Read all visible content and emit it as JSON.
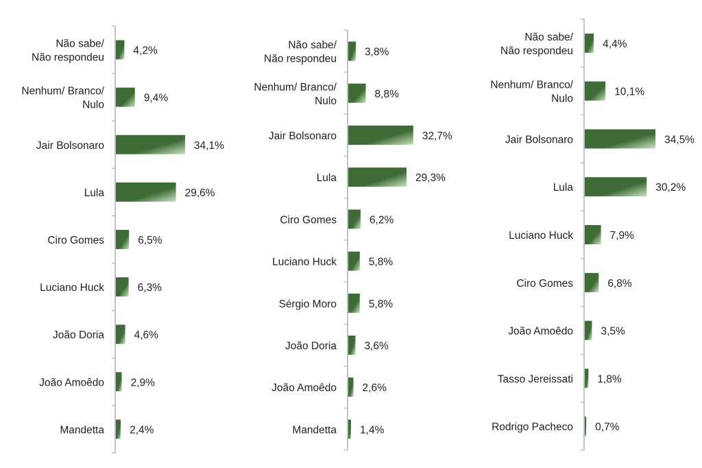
{
  "chart_data": [
    {
      "type": "bar",
      "orientation": "horizontal",
      "categories": [
        "Não sabe/\nNão respondeu",
        "Nenhum/ Branco/\nNulo",
        "Jair Bolsonaro",
        "Lula",
        "Ciro Gomes",
        "Luciano Huck",
        "João Doria",
        "João Amoêdo",
        "Mandetta"
      ],
      "values": [
        4.2,
        9.4,
        34.1,
        29.6,
        6.5,
        6.3,
        4.6,
        2.9,
        2.4
      ],
      "value_labels": [
        "4,2%",
        "9,4%",
        "34,1%",
        "29,6%",
        "6,5%",
        "6,3%",
        "4,6%",
        "2,9%",
        "2,4%"
      ],
      "xlim": [
        0,
        40
      ]
    },
    {
      "type": "bar",
      "orientation": "horizontal",
      "categories": [
        "Não sabe/\nNão respondeu",
        "Nenhum/ Branco/\nNulo",
        "Jair Bolsonaro",
        "Lula",
        "Ciro Gomes",
        "Luciano Huck",
        "Sérgio Moro",
        "João Doria",
        "João Amoêdo",
        "Mandetta"
      ],
      "values": [
        3.8,
        8.8,
        32.7,
        29.3,
        6.2,
        5.8,
        5.8,
        3.6,
        2.6,
        1.4
      ],
      "value_labels": [
        "3,8%",
        "8,8%",
        "32,7%",
        "29,3%",
        "6,2%",
        "5,8%",
        "5,8%",
        "3,6%",
        "2,6%",
        "1,4%"
      ],
      "xlim": [
        0,
        40
      ]
    },
    {
      "type": "bar",
      "orientation": "horizontal",
      "categories": [
        "Não sabe/\nNão respondeu",
        "Nenhum/ Branco/\nNulo",
        "Jair Bolsonaro",
        "Lula",
        "Luciano Huck",
        "Ciro Gomes",
        "João Amoêdo",
        "Tasso Jereissati",
        "Rodrigo Pacheco"
      ],
      "values": [
        4.4,
        10.1,
        34.5,
        30.2,
        7.9,
        6.8,
        3.5,
        1.8,
        0.7
      ],
      "value_labels": [
        "4,4%",
        "10,1%",
        "34,5%",
        "30,2%",
        "7,9%",
        "6,8%",
        "3,5%",
        "1,8%",
        "0,7%"
      ],
      "xlim": [
        0,
        40
      ]
    }
  ],
  "colors": {
    "bar_dark": "#3f6b37",
    "bar_light": "#c9e3c2",
    "axis": "#a9b0b8"
  }
}
